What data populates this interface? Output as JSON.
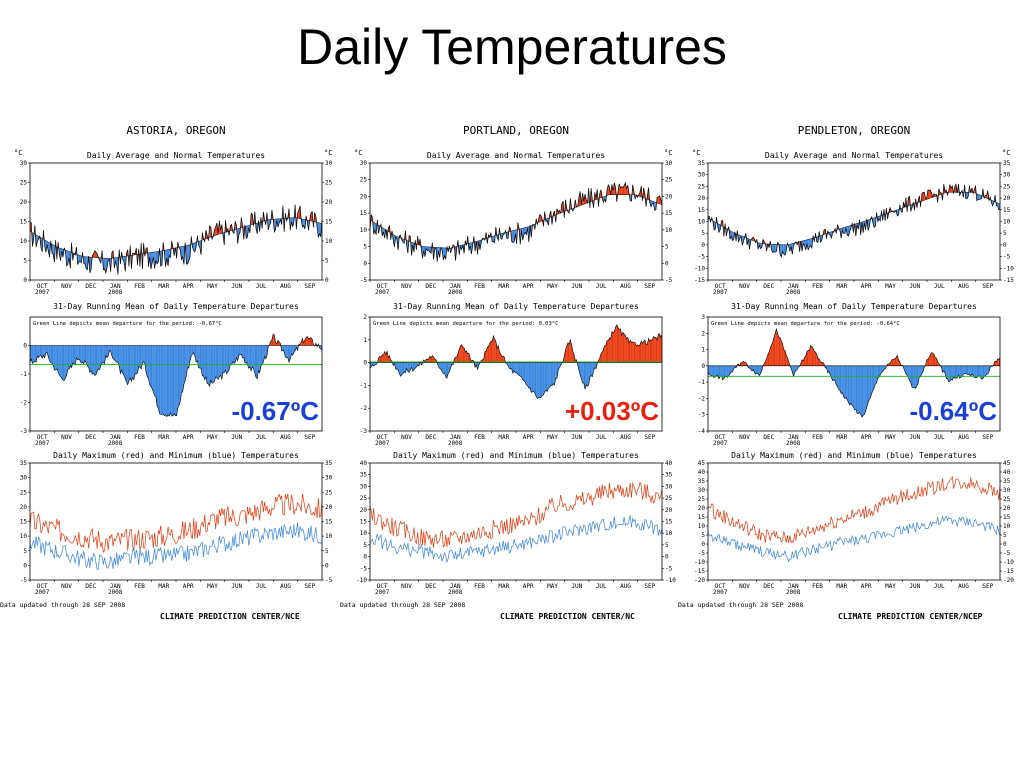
{
  "slide": {
    "title": "Daily Temperatures"
  },
  "common": {
    "top_chart_title": "Daily Average and Normal Temperatures",
    "mid_chart_title": "31-Day Running Mean of Daily Temperature Departures",
    "bottom_chart_title": "Daily Maximum (red) and Minimum (blue) Temperatures",
    "unit_c": "°C",
    "unit_f": "°C",
    "months": [
      "OCT",
      "NOV",
      "DEC",
      "JAN",
      "FEB",
      "MAR",
      "APR",
      "MAY",
      "JUN",
      "JUL",
      "AUG",
      "SEP"
    ],
    "year_start": "2007",
    "year_mid": "2008",
    "updated": "Data updated through 28 SEP 2008",
    "green_line_prefix": "Green Line depicts mean departure for the period:",
    "colors": {
      "above": "#e8380d",
      "below": "#3a86e0",
      "max_line": "#e8380d",
      "min_line": "#3a86e0",
      "green": "#1fae1f",
      "big_neg": "#1a3fd6",
      "big_pos": "#e8200d"
    }
  },
  "panels": [
    {
      "station": "ASTORIA, OREGON",
      "mean_dep": "-0.67°C",
      "big_label": "-0.67ºC",
      "credit": "CLIMATE PREDICTION CENTER/NCE"
    },
    {
      "station": "PORTLAND, OREGON",
      "mean_dep": "0.03°C",
      "big_label": "+0.03ºC",
      "credit": "CLIMATE PREDICTION CENTER/NC"
    },
    {
      "station": "PENDLETON, OREGON",
      "mean_dep": "-0.64°C",
      "big_label": "-0.64ºC",
      "credit": "CLIMATE PREDICTION CENTER/NCEP"
    }
  ],
  "chart_data": [
    {
      "type": "area",
      "title": "Daily Average and Normal Temperatures",
      "station": "ASTORIA, OREGON",
      "ylabel": "°C",
      "ylim": [
        0,
        30
      ],
      "yticks": [
        0,
        5,
        10,
        15,
        20,
        25,
        30
      ],
      "x_labels": [
        "OCT 2007",
        "NOV",
        "DEC",
        "JAN 2008",
        "FEB",
        "MAR",
        "APR",
        "MAY",
        "JUN",
        "JUL",
        "AUG",
        "SEP"
      ],
      "normal_monthly": [
        12.5,
        8.5,
        6.0,
        5.5,
        6.5,
        7.5,
        9.0,
        11.5,
        13.5,
        15.5,
        16.0,
        14.5
      ],
      "actual_monthly": [
        12.0,
        7.5,
        5.0,
        4.0,
        6.0,
        6.5,
        7.5,
        12.0,
        13.0,
        15.5,
        16.0,
        14.0
      ]
    },
    {
      "type": "area",
      "title": "Daily Average and Normal Temperatures",
      "station": "PORTLAND, OREGON",
      "ylabel": "°C",
      "ylim": [
        -5,
        30
      ],
      "yticks": [
        -5,
        0,
        5,
        10,
        15,
        20,
        25,
        30
      ],
      "x_labels": [
        "OCT 2007",
        "NOV",
        "DEC",
        "JAN 2008",
        "FEB",
        "MAR",
        "APR",
        "MAY",
        "JUN",
        "JUL",
        "AUG",
        "SEP"
      ],
      "normal_monthly": [
        13.0,
        8.0,
        5.0,
        4.5,
        6.5,
        9.0,
        11.0,
        14.5,
        17.5,
        20.5,
        20.5,
        17.5
      ],
      "actual_monthly": [
        12.5,
        7.5,
        4.5,
        3.0,
        6.0,
        8.5,
        9.5,
        15.5,
        18.5,
        21.0,
        21.5,
        18.0
      ]
    },
    {
      "type": "area",
      "title": "Daily Average and Normal Temperatures",
      "station": "PENDLETON, OREGON",
      "ylabel": "°C",
      "ylim": [
        -15,
        35
      ],
      "yticks": [
        -15,
        -10,
        -5,
        0,
        5,
        10,
        15,
        20,
        25,
        30,
        35
      ],
      "x_labels": [
        "OCT 2007",
        "NOV",
        "DEC",
        "JAN 2008",
        "FEB",
        "MAR",
        "APR",
        "MAY",
        "JUN",
        "JUL",
        "AUG",
        "SEP"
      ],
      "normal_monthly": [
        11.5,
        5.0,
        0.5,
        0.0,
        3.0,
        7.0,
        10.5,
        14.5,
        18.5,
        22.5,
        22.5,
        17.5
      ],
      "actual_monthly": [
        11.0,
        4.0,
        -0.5,
        -2.5,
        2.5,
        6.0,
        8.0,
        15.0,
        19.0,
        23.0,
        23.0,
        17.0
      ]
    },
    {
      "type": "area",
      "title": "31-Day Running Mean of Daily Temperature Departures",
      "station": "ASTORIA, OREGON",
      "ylim": [
        -3,
        1
      ],
      "yticks": [
        -3,
        -2,
        -1,
        0
      ],
      "mean_departure": -0.67,
      "departures": [
        -0.6,
        -0.3,
        -1.2,
        -0.4,
        -1.0,
        -0.2,
        -1.4,
        -0.6,
        -2.3,
        -2.5,
        -0.2,
        -1.4,
        -1.0,
        -0.3,
        -1.1,
        0.3,
        -0.5,
        0.3,
        -0.1
      ]
    },
    {
      "type": "area",
      "title": "31-Day Running Mean of Daily Temperature Departures",
      "station": "PORTLAND, OREGON",
      "ylim": [
        -3,
        2
      ],
      "yticks": [
        -3,
        -2,
        -1,
        0,
        1,
        2
      ],
      "mean_departure": 0.03,
      "departures": [
        -0.3,
        0.5,
        -0.5,
        -0.2,
        0.3,
        -0.6,
        0.8,
        -0.3,
        1.1,
        -0.2,
        -0.8,
        -1.6,
        -0.9,
        1.0,
        -1.2,
        0.3,
        1.6,
        0.8,
        0.9,
        1.2
      ]
    },
    {
      "type": "area",
      "title": "31-Day Running Mean of Daily Temperature Departures",
      "station": "PENDLETON, OREGON",
      "ylim": [
        -4,
        3
      ],
      "yticks": [
        -4,
        -3,
        -2,
        -1,
        0,
        1,
        2,
        3
      ],
      "mean_departure": -0.64,
      "departures": [
        -0.5,
        -0.8,
        0.3,
        -0.6,
        2.2,
        -0.6,
        1.2,
        -0.4,
        -2.0,
        -3.2,
        -0.5,
        0.6,
        -1.5,
        0.9,
        -0.9,
        -0.5,
        -0.8,
        0.6
      ]
    },
    {
      "type": "line",
      "title": "Daily Maximum (red) and Minimum (blue) Temperatures",
      "station": "ASTORIA, OREGON",
      "ylim": [
        -5,
        35
      ],
      "yticks": [
        -5,
        0,
        5,
        10,
        15,
        20,
        25,
        30,
        35
      ],
      "series": [
        {
          "name": "Maximum",
          "values": [
            15,
            12,
            10,
            8,
            9,
            10,
            12,
            16,
            17,
            20,
            21,
            19
          ]
        },
        {
          "name": "Minimum",
          "values": [
            8,
            5,
            2,
            1,
            3,
            3,
            4,
            7,
            9,
            11,
            12,
            10
          ]
        }
      ]
    },
    {
      "type": "line",
      "title": "Daily Maximum (red) and Minimum (blue) Temperatures",
      "station": "PORTLAND, OREGON",
      "ylim": [
        -10,
        40
      ],
      "yticks": [
        -10,
        -5,
        0,
        5,
        10,
        15,
        20,
        25,
        30,
        35,
        40
      ],
      "series": [
        {
          "name": "Maximum",
          "values": [
            18,
            12,
            8,
            7,
            10,
            13,
            15,
            22,
            24,
            28,
            29,
            25
          ]
        },
        {
          "name": "Minimum",
          "values": [
            8,
            4,
            2,
            0,
            2,
            4,
            6,
            9,
            12,
            14,
            15,
            11
          ]
        }
      ]
    },
    {
      "type": "line",
      "title": "Daily Maximum (red) and Minimum (blue) Temperatures",
      "station": "PENDLETON, OREGON",
      "ylim": [
        -20,
        45
      ],
      "yticks": [
        -20,
        -15,
        -10,
        -5,
        0,
        5,
        10,
        15,
        20,
        25,
        30,
        35,
        40,
        45
      ],
      "series": [
        {
          "name": "Maximum",
          "values": [
            20,
            12,
            5,
            3,
            8,
            14,
            18,
            25,
            29,
            34,
            34,
            28
          ]
        },
        {
          "name": "Minimum",
          "values": [
            5,
            0,
            -4,
            -7,
            -3,
            1,
            3,
            7,
            10,
            13,
            12,
            7
          ]
        }
      ]
    }
  ]
}
